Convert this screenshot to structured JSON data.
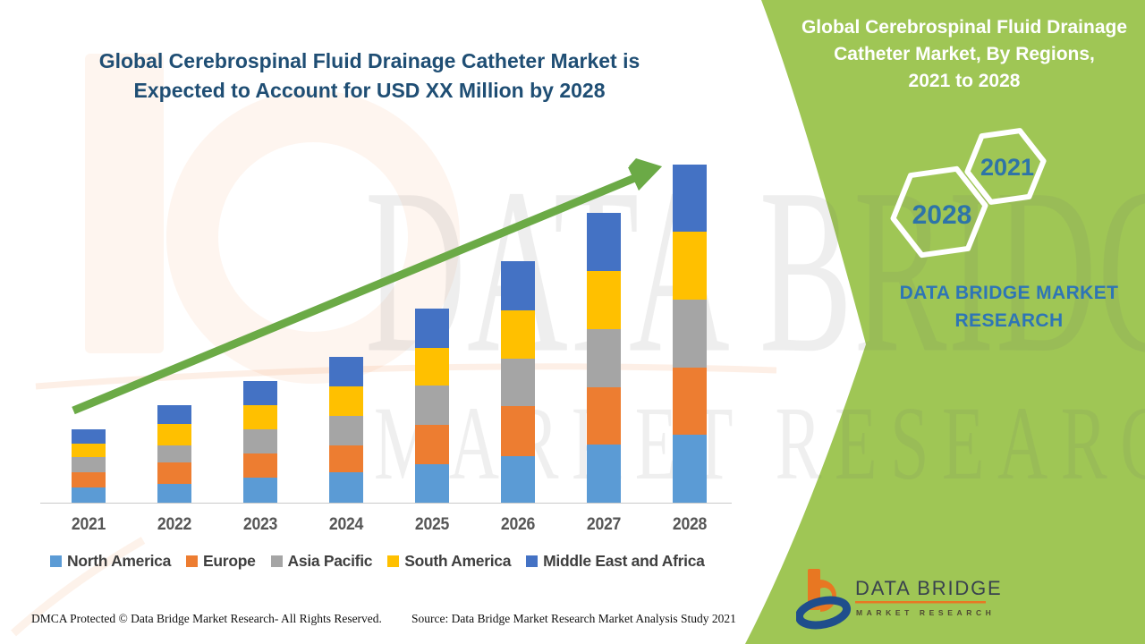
{
  "left_title": {
    "line1": "Global Cerebrospinal Fluid Drainage Catheter Market is",
    "line2": "Expected to Account for USD XX Million by 2028"
  },
  "right_panel": {
    "title_lines": [
      "Global Cerebrospinal Fluid Drainage",
      "Catheter Market, By Regions,",
      "2021 to 2028"
    ],
    "hexagon_small_label": "2021",
    "hexagon_large_label": "2028",
    "brand_line1": "DATA BRIDGE MARKET",
    "brand_line2": "RESEARCH",
    "panel_color": "#9FC655"
  },
  "chart_data": {
    "type": "bar",
    "stacked": true,
    "title": "Global Cerebrospinal Fluid Drainage Catheter Market is Expected to Account for USD XX Million by 2028",
    "xlabel": "",
    "ylabel": "",
    "y_axis_visible": false,
    "values_unit": "relative market size index (USD value undisclosed, shown as XX Million)",
    "legend_position": "bottom",
    "grid": false,
    "trend_arrow": true,
    "trend_arrow_color": "#6BAA46",
    "categories": [
      "2021",
      "2022",
      "2023",
      "2024",
      "2025",
      "2026",
      "2027",
      "2028"
    ],
    "series": [
      {
        "name": "North America",
        "color": "#5B9BD5",
        "values": [
          17,
          21,
          28,
          34,
          43,
          52,
          65,
          76
        ]
      },
      {
        "name": "Europe",
        "color": "#ED7D31",
        "values": [
          17,
          24,
          27,
          30,
          44,
          56,
          64,
          75
        ]
      },
      {
        "name": "Asia Pacific",
        "color": "#A5A5A5",
        "values": [
          17,
          19,
          27,
          33,
          44,
          53,
          65,
          76
        ]
      },
      {
        "name": "South America",
        "color": "#FFC000",
        "values": [
          15,
          24,
          27,
          33,
          42,
          54,
          65,
          76
        ]
      },
      {
        "name": "Middle East and Africa",
        "color": "#4472C4",
        "values": [
          16,
          21,
          27,
          33,
          44,
          55,
          65,
          75
        ]
      }
    ],
    "totals": [
      82,
      109,
      136,
      163,
      217,
      270,
      324,
      378
    ]
  },
  "watermark": {
    "line1": "DATA BRIDGE",
    "line2": "MARKET RESEARCH"
  },
  "footer": {
    "left": "DMCA Protected © Data Bridge Market Research- All Rights Reserved.",
    "right": "Source: Data Bridge Market Research Market Analysis Study 2021"
  },
  "logo": {
    "name": "DATA BRIDGE",
    "tagline": "MARKET RESEARCH"
  }
}
